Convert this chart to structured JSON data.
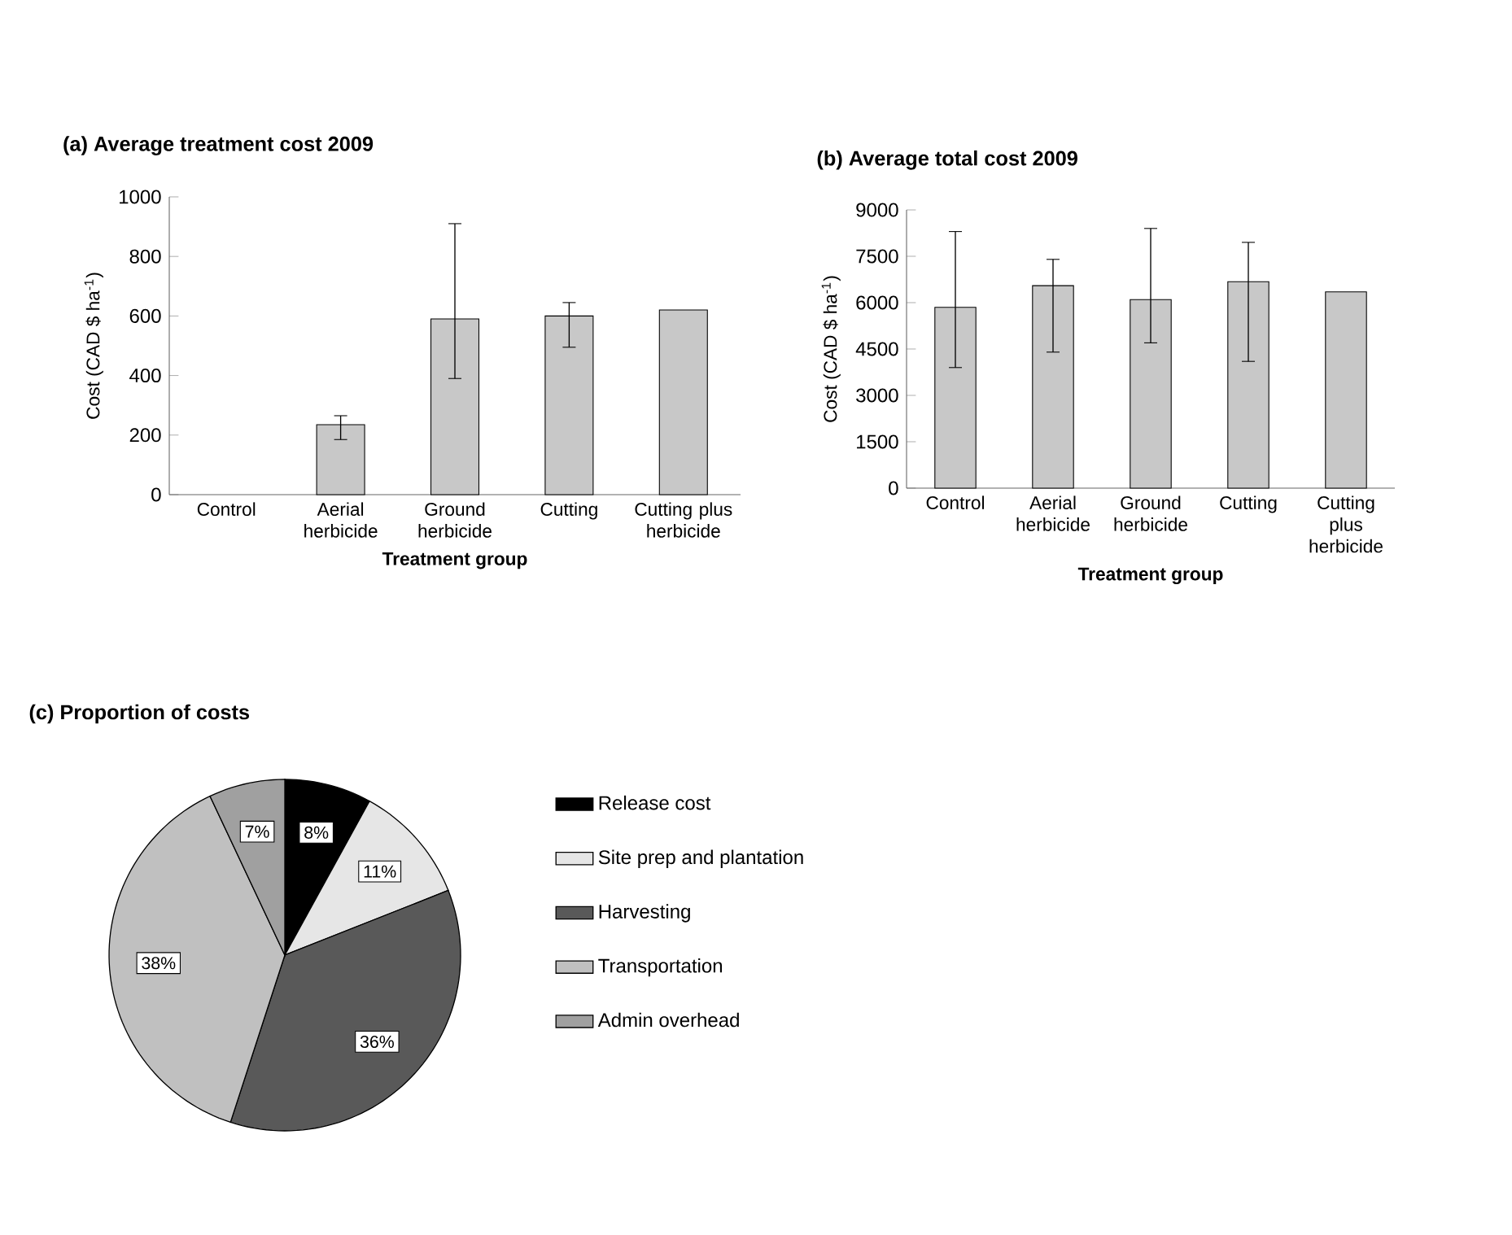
{
  "chart_data": [
    {
      "type": "bar",
      "title": "(a) Average treatment cost 2009",
      "xlabel": "Treatment group",
      "ylabel": "Cost (CAD $ ha$^{-1}$)",
      "categories": [
        "Control",
        "Aerial herbicide",
        "Ground herbicide",
        "Cutting",
        "Cutting plus herbicide"
      ],
      "values": [
        null,
        235,
        590,
        600,
        620
      ],
      "color": "#c8c8c8",
      "errors": [
        null,
        [
          185,
          265
        ],
        [
          390,
          910
        ],
        [
          495,
          645
        ],
        null
      ],
      "ylim": [
        0,
        1000
      ],
      "yticks": [
        0,
        200,
        400,
        600,
        800,
        1000
      ]
    },
    {
      "type": "bar",
      "title": "(b) Average total cost 2009",
      "xlabel": "Treatment group",
      "ylabel": "Cost (CAD $ ha$^{-1}$)",
      "categories": [
        "Control",
        "Aerial herbicide",
        "Ground herbicide",
        "Cutting",
        "Cutting plus herbicide"
      ],
      "values": [
        5850,
        6550,
        6100,
        6680,
        6350
      ],
      "color": "#c8c8c8",
      "errors": [
        [
          3900,
          8300
        ],
        [
          4400,
          7400
        ],
        [
          4700,
          8400
        ],
        [
          4100,
          7950
        ],
        null
      ],
      "ylim": [
        0,
        9000
      ],
      "yticks": [
        0,
        1500,
        3000,
        4500,
        6000,
        7500,
        9000
      ]
    },
    {
      "type": "pie",
      "title": "(c) Proportion of costs",
      "categories": [
        "Release cost",
        "Site prep and plantation",
        "Harvesting",
        "Transportation",
        "Admin overhead"
      ],
      "values": [
        8,
        11,
        36,
        38,
        7
      ],
      "colors": [
        "#000000",
        "#e6e6e6",
        "#595959",
        "#c0c0c0",
        "#a0a0a0"
      ],
      "value_labels": [
        "8%",
        "11%",
        "36%",
        "38%",
        "7%"
      ],
      "legend": "right"
    }
  ]
}
